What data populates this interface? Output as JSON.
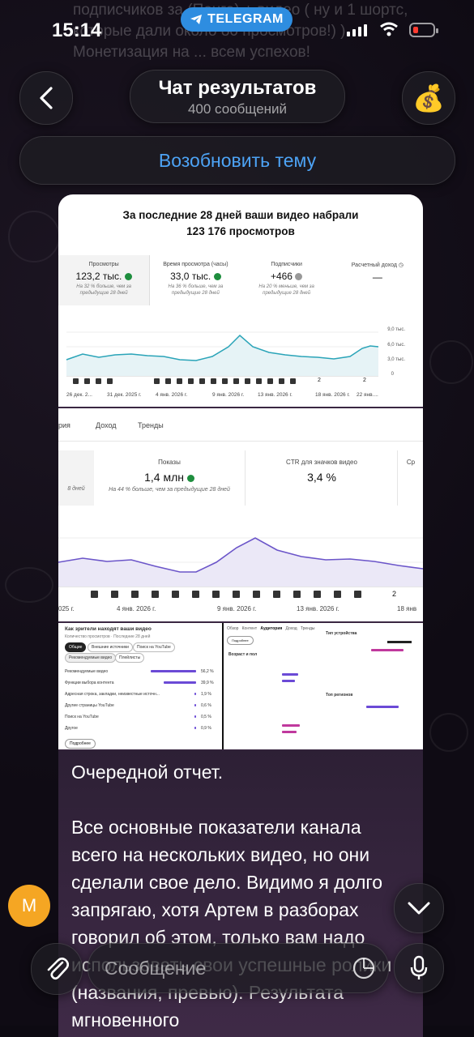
{
  "status_bar": {
    "time": "15:14",
    "app_label": "TELEGRAM"
  },
  "header": {
    "title": "Чат результатов",
    "subtitle": "400 сообщений",
    "avatar_emoji": "💰",
    "resume_label": "Возобновить тему"
  },
  "background_text": "подписчиков за (Понга) + видео ( ну и 1 шортс, которые дали около 80 просмотров!) ) Монетизация на ... всем успехов!",
  "report1": {
    "title_line1": "За последние 28 дней ваши видео набрали",
    "title_line2": "123 176 просмотров",
    "kpis": [
      {
        "label": "Просмотры",
        "value": "123,2 тыс.",
        "note": "На 32 % больше, чем за предыдущие 28 дней"
      },
      {
        "label": "Время просмотра (часы)",
        "value": "33,0 тыс.",
        "note": "На 36 % больше, чем за предыдущие 28 дней"
      },
      {
        "label": "Подписчики",
        "value": "+466",
        "note": "На 20 % меньше, чем за предыдущие 28 дней"
      },
      {
        "label": "Расчетный доход",
        "value": "—",
        "note": ""
      }
    ],
    "y_ticks": [
      "9,0 тыс.",
      "6,0 тыс.",
      "3,0 тыс.",
      "0"
    ],
    "x_ticks": [
      "26 дек. 2...",
      "31 дек. 2025 г.",
      "4 янв. 2026 г.",
      "9 янв. 2026 г.",
      "13 янв. 2026 г.",
      "18 янв. 2026 г.",
      "22 янв...."
    ],
    "marker_labels": [
      "2",
      "2"
    ]
  },
  "report2": {
    "tabs": [
      "рия",
      "Доход",
      "Тренды"
    ],
    "left_note": "8 дней",
    "kpis": [
      {
        "label": "Показы",
        "value": "1,4 млн",
        "note": "На 44 % больше, чем за предыдущие 28 дней"
      },
      {
        "label": "CTR для значков видео",
        "value": "3,4 %",
        "note": ""
      },
      {
        "label": "Ср",
        "value": "",
        "note": ""
      }
    ],
    "x_ticks": [
      "025 г.",
      "4 янв. 2026 г.",
      "9 янв. 2026 г.",
      "13 янв. 2026 г.",
      "18 янв"
    ],
    "marker_labels": [
      "2"
    ]
  },
  "report3": {
    "left_title": "Как зрители находят ваши видео",
    "left_sub": "Количество просмотров · Последние 28 дней",
    "filters": [
      "Общие",
      "Внешние источники",
      "Поиск на YouTube"
    ],
    "filters2": [
      "Рекомендуемые видео",
      "Плейлисты"
    ],
    "rows": [
      {
        "label": "Рекомендуемые видео",
        "value": "56,2 %",
        "pct": 0.562
      },
      {
        "label": "Функции выбора контента",
        "value": "39,9 %",
        "pct": 0.399
      },
      {
        "label": "Адресная строка, закладки, неизвестные источн...",
        "value": "1,9 %",
        "pct": 0.019
      },
      {
        "label": "Другие страницы YouTube",
        "value": "0,6 %",
        "pct": 0.006
      },
      {
        "label": "Поиск на YouTube",
        "value": "0,5 %",
        "pct": 0.005
      },
      {
        "label": "Другое",
        "value": "0,9 %",
        "pct": 0.009
      }
    ],
    "more_label": "Подробнее",
    "mid_tabs": [
      "Обзор",
      "Контент",
      "Аудитория",
      "Доход",
      "Тренды"
    ],
    "mid_title": "Возраст и пол",
    "right_title1": "Тип устройства",
    "right_title2": "Топ регионов"
  },
  "caption": [
    "Очередной отчет.",
    "",
    "Все основные показатели канала всего на нескольких видео, но они сделали свое дело. Видимо я долго запрягаю, хотя Артем в разборах говорил об этом, только вам надо использовать свои успешные ролики (названия, превью). Результата мгновенного"
  ],
  "composer": {
    "avatar_letter": "М",
    "placeholder": "Сообщение"
  }
}
